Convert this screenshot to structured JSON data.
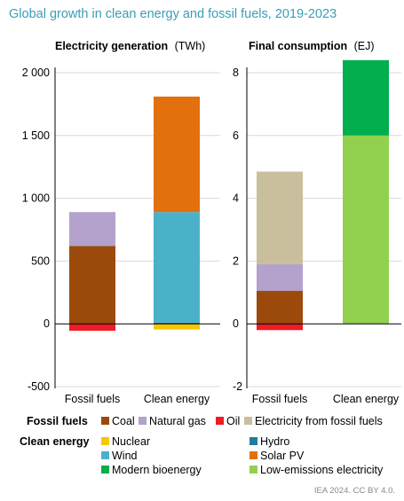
{
  "title": "Global growth in clean energy and fossil fuels, 2019-2023",
  "source": "IEA 2024. CC BY 4.0.",
  "colors": {
    "coal": "#9b4a0b",
    "natural_gas": "#b4a2cc",
    "oil": "#ee1c25",
    "electricity_from_fossil_fuels": "#c9bf9c",
    "nuclear": "#f7c600",
    "hydro": "#1c7f9d",
    "wind": "#4bb1c9",
    "solar_pv": "#e2700c",
    "modern_bioenergy": "#00ae4d",
    "low_emissions_electricity": "#92d050"
  },
  "legend": {
    "fossil_heading": "Fossil fuels",
    "clean_heading": "Clean energy",
    "fossil_items": [
      "Coal",
      "Natural gas",
      "Oil",
      "Electricity from fossil fuels"
    ],
    "clean_items": [
      "Nuclear",
      "Hydro",
      "Wind",
      "Solar PV",
      "Modern bioenergy",
      "Low-emissions electricity"
    ]
  },
  "chart_data": [
    {
      "type": "bar",
      "stacked": true,
      "title": "Electricity generation",
      "unit": "(TWh)",
      "categories": [
        "Fossil fuels",
        "Clean energy"
      ],
      "ylim": [
        -500,
        2000
      ],
      "yticks": [
        -500,
        0,
        500,
        1000,
        1500,
        2000
      ],
      "ytick_labels": [
        "-500",
        "0",
        "500",
        "1 000",
        "1 500",
        "2 000"
      ],
      "series": [
        {
          "name": "Coal",
          "key": "coal",
          "values": [
            620,
            0
          ]
        },
        {
          "name": "Natural gas",
          "key": "natural_gas",
          "values": [
            270,
            0
          ]
        },
        {
          "name": "Oil",
          "key": "oil",
          "values": [
            -55,
            0
          ]
        },
        {
          "name": "Nuclear",
          "key": "nuclear",
          "values": [
            0,
            -45
          ]
        },
        {
          "name": "Hydro",
          "key": "hydro",
          "values": [
            0,
            10
          ]
        },
        {
          "name": "Wind",
          "key": "wind",
          "values": [
            0,
            880
          ]
        },
        {
          "name": "Solar PV",
          "key": "solar_pv",
          "values": [
            0,
            920
          ]
        }
      ]
    },
    {
      "type": "bar",
      "stacked": true,
      "title": "Final consumption",
      "unit": "(EJ)",
      "categories": [
        "Fossil fuels",
        "Clean energy"
      ],
      "ylim": [
        -2,
        8
      ],
      "yticks": [
        -2,
        0,
        2,
        4,
        6,
        8
      ],
      "ytick_labels": [
        "-2",
        "0",
        "2",
        "4",
        "6",
        "8"
      ],
      "series": [
        {
          "name": "Coal",
          "key": "coal",
          "values": [
            1.05,
            0
          ]
        },
        {
          "name": "Natural gas",
          "key": "natural_gas",
          "values": [
            0.85,
            0
          ]
        },
        {
          "name": "Oil",
          "key": "oil",
          "values": [
            -0.2,
            0
          ]
        },
        {
          "name": "Electricity from fossil fuels",
          "key": "electricity_from_fossil_fuels",
          "values": [
            2.95,
            0
          ]
        },
        {
          "name": "Low-emissions electricity",
          "key": "low_emissions_electricity",
          "values": [
            0,
            6.0
          ]
        },
        {
          "name": "Modern bioenergy",
          "key": "modern_bioenergy",
          "values": [
            0,
            2.4
          ]
        }
      ]
    }
  ]
}
